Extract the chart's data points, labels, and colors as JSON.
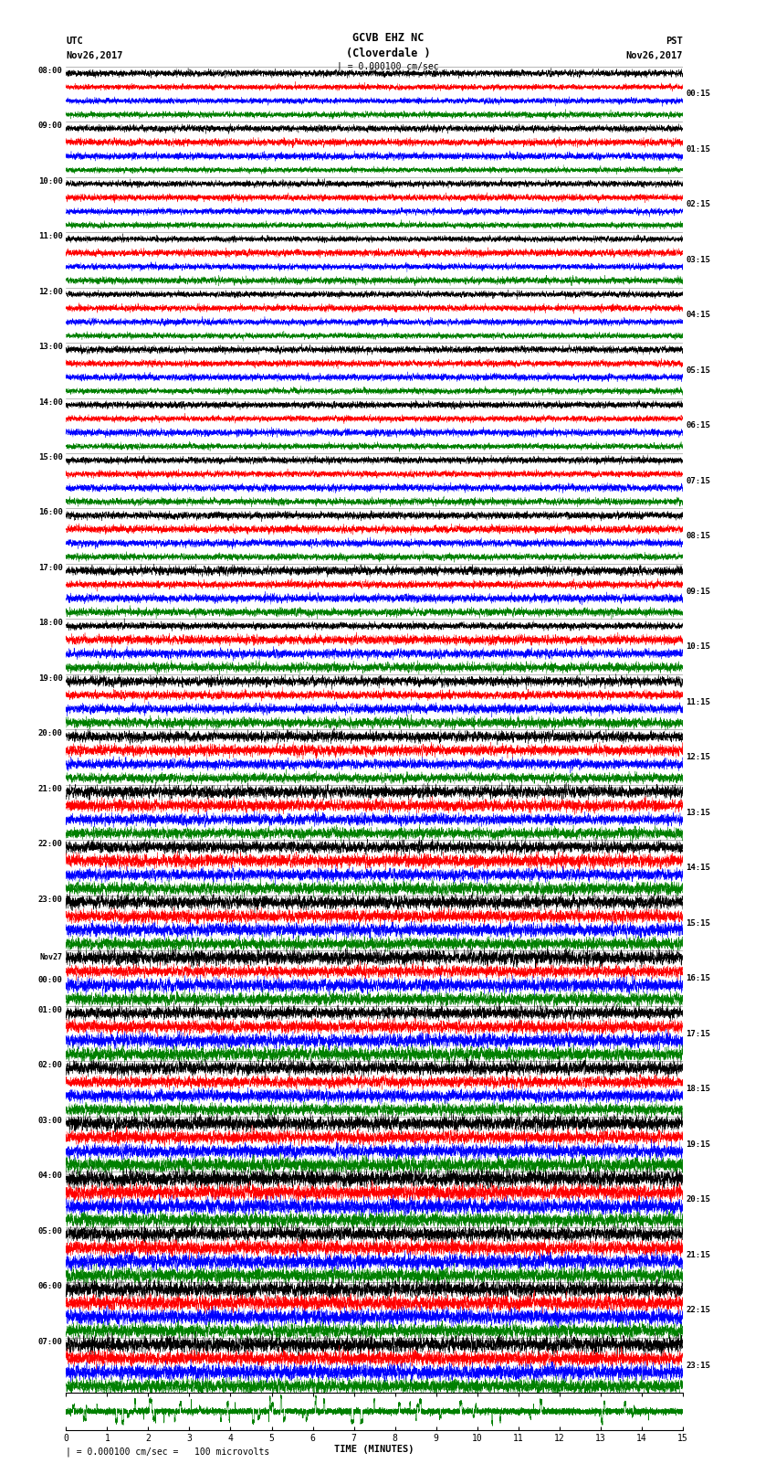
{
  "title_line1": "GCVB EHZ NC",
  "title_line2": "(Cloverdale )",
  "title_scale": "| = 0.000100 cm/sec",
  "left_header_line1": "UTC",
  "left_header_line2": "Nov26,2017",
  "right_header_line1": "PST",
  "right_header_line2": "Nov26,2017",
  "utc_times": [
    "08:00",
    "09:00",
    "10:00",
    "11:00",
    "12:00",
    "13:00",
    "14:00",
    "15:00",
    "16:00",
    "17:00",
    "18:00",
    "19:00",
    "20:00",
    "21:00",
    "22:00",
    "23:00",
    "Nov27\n00:00",
    "01:00",
    "02:00",
    "03:00",
    "04:00",
    "05:00",
    "06:00",
    "07:00"
  ],
  "pst_times": [
    "00:15",
    "01:15",
    "02:15",
    "03:15",
    "04:15",
    "05:15",
    "06:15",
    "07:15",
    "08:15",
    "09:15",
    "10:15",
    "11:15",
    "12:15",
    "13:15",
    "14:15",
    "15:15",
    "16:15",
    "17:15",
    "18:15",
    "19:15",
    "20:15",
    "21:15",
    "22:15",
    "23:15"
  ],
  "xlabel": "TIME (MINUTES)",
  "xmin": 0,
  "xmax": 15,
  "xticks": [
    0,
    1,
    2,
    3,
    4,
    5,
    6,
    7,
    8,
    9,
    10,
    11,
    12,
    13,
    14,
    15
  ],
  "footer_text": "| = 0.000100 cm/sec =   100 microvolts",
  "num_rows": 24,
  "colors": [
    "black",
    "red",
    "blue",
    "green"
  ],
  "background_color": "white",
  "n_points": 8000,
  "sub_rows_per_row": 4,
  "amp_early": 0.4,
  "amp_mid1": 0.42,
  "amp_mid2": 0.8,
  "amp_late": 0.95,
  "amp_transition1": 7,
  "amp_transition2": 15
}
